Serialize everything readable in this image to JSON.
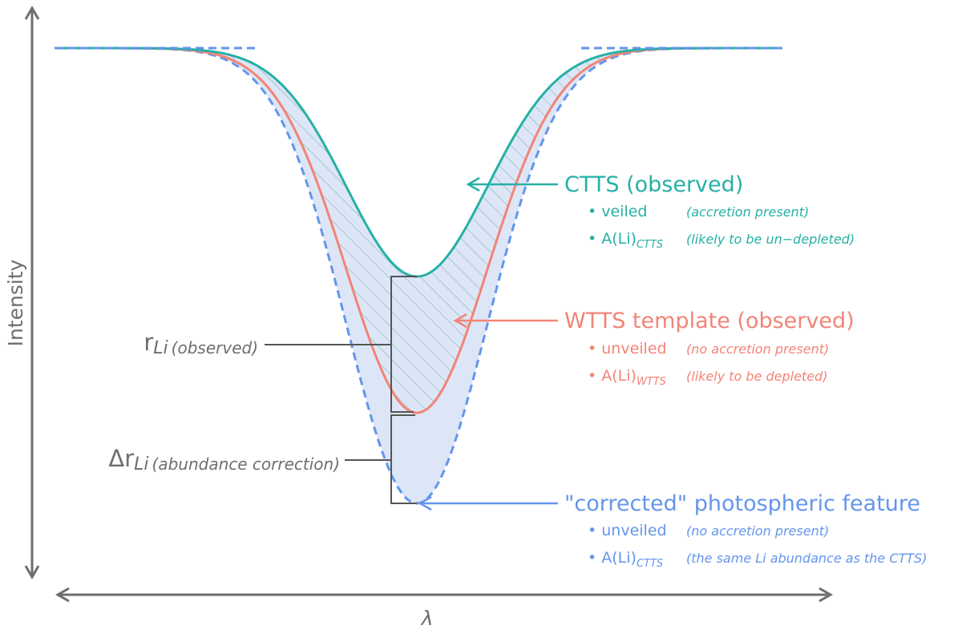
{
  "axes": {
    "y_label": "Intensity",
    "x_label": "λ"
  },
  "ctts": {
    "title": "CTTS (observed)",
    "item1": "veiled",
    "item1_note": "(accretion present)",
    "item2_prefix": "A(Li)",
    "item2_sub": "CTTS",
    "item2_note": "(likely to be un−depleted)"
  },
  "wtts": {
    "title": "WTTS template (observed)",
    "item1": "unveiled",
    "item1_note": "(no accretion present)",
    "item2_prefix": "A(Li)",
    "item2_sub": "WTTS",
    "item2_note": "(likely to be depleted)"
  },
  "corrected": {
    "title": "\"corrected\" photospheric feature",
    "item1": "unveiled",
    "item1_note": "(no accretion present)",
    "item2_prefix": "A(Li)",
    "item2_sub": "CTTS",
    "item2_note": "(the same Li abundance as the CTTS)"
  },
  "r_label": {
    "main": "r",
    "sub": "Li",
    "note": "(observed)"
  },
  "dr_label": {
    "main": "Δr",
    "sub": "Li",
    "note": "(abundance correction)"
  },
  "colors": {
    "ctts": "#26b0a5",
    "wtts": "#f28476",
    "corrected": "#6495ed",
    "fill": "#dde6f7",
    "axis": "#6e6e6e"
  }
}
